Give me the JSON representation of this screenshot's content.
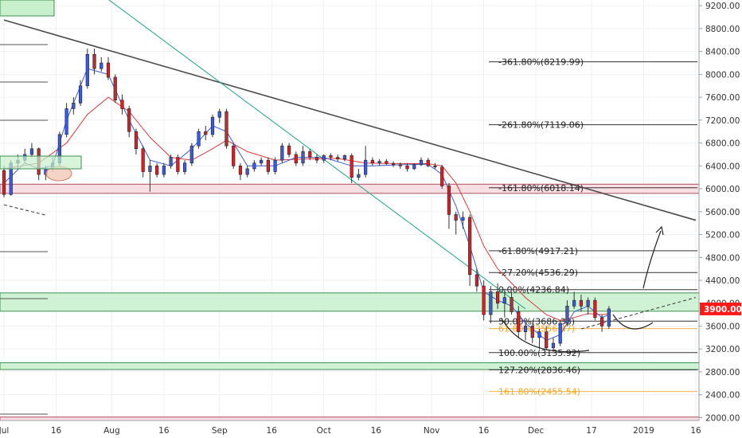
{
  "chart_data": {
    "type": "candlestick",
    "title": "",
    "xlabel": "",
    "ylabel": "",
    "ylim": [
      1950,
      9300
    ],
    "y_ticks": [
      9200,
      8800,
      8400,
      8000,
      7600,
      7200,
      6800,
      6400,
      6000,
      5600,
      5200,
      4800,
      4400,
      4000,
      3600,
      3200,
      2800,
      2400,
      2000
    ],
    "y_tick_labels": [
      "9200.00",
      "8800.00",
      "8400.00",
      "8000.00",
      "7600.00",
      "7200.00",
      "6800.00",
      "6400.00",
      "6000.00",
      "5600.00",
      "5200.00",
      "4800.00",
      "4400.00",
      "4000.00",
      "3600.00",
      "3200.00",
      "2800.00",
      "2400.00",
      "2000.00"
    ],
    "x_ticks": [
      {
        "label": "Jul",
        "day": 0
      },
      {
        "label": "16",
        "day": 15
      },
      {
        "label": "Aug",
        "day": 31
      },
      {
        "label": "16",
        "day": 46
      },
      {
        "label": "Sep",
        "day": 62
      },
      {
        "label": "16",
        "day": 77
      },
      {
        "label": "Oct",
        "day": 92
      },
      {
        "label": "16",
        "day": 107
      },
      {
        "label": "Nov",
        "day": 123
      },
      {
        "label": "16",
        "day": 138
      },
      {
        "label": "Dec",
        "day": 153
      },
      {
        "label": "17",
        "day": 169
      },
      {
        "label": "2019",
        "day": 184
      },
      {
        "label": "16",
        "day": 199
      }
    ],
    "x_range_days": [
      0,
      199
    ],
    "price_label": {
      "value": 3900,
      "text": "3900.00",
      "color": "#ff1a1a"
    },
    "fib_levels": [
      {
        "label": "-361.80%(8219.99)",
        "value": 8219.99,
        "color": "#222222"
      },
      {
        "label": "-261.80%(7119.06)",
        "value": 7119.06,
        "color": "#222222"
      },
      {
        "label": "-161.80%(6018.14)",
        "value": 6018.14,
        "color": "#222222"
      },
      {
        "label": "-61.80%(4917.21)",
        "value": 4917.21,
        "color": "#222222"
      },
      {
        "label": "-27.20%(4536.29)",
        "value": 4536.29,
        "color": "#222222"
      },
      {
        "label": "0.00%(4236.84)",
        "value": 4236.84,
        "color": "#222222"
      },
      {
        "label": "50.00%(3686.38)",
        "value": 3686.38,
        "color": "#222222"
      },
      {
        "label": "61.80%(3556.47)",
        "value": 3556.47,
        "color": "#f5a623"
      },
      {
        "label": "100.00%(3135.92)",
        "value": 3135.92,
        "color": "#222222"
      },
      {
        "label": "127.20%(2836.46)",
        "value": 2836.46,
        "color": "#222222"
      },
      {
        "label": "161.80%(2455.54)",
        "value": 2455.54,
        "color": "#f5a623"
      }
    ],
    "zones": [
      {
        "low": 5920,
        "high": 6080,
        "color": "pink"
      },
      {
        "low": 3860,
        "high": 4180,
        "color": "green"
      },
      {
        "low": 2840,
        "high": 2960,
        "color": "green"
      },
      {
        "low": 1950,
        "high": 2010,
        "color": "pink"
      }
    ],
    "candles": [
      {
        "day": 0,
        "o": 6320,
        "h": 6400,
        "l": 5850,
        "c": 5900
      },
      {
        "day": 2,
        "o": 5900,
        "h": 6500,
        "l": 5880,
        "c": 6450
      },
      {
        "day": 4,
        "o": 6450,
        "h": 6600,
        "l": 6350,
        "c": 6500
      },
      {
        "day": 6,
        "o": 6500,
        "h": 6700,
        "l": 6450,
        "c": 6600
      },
      {
        "day": 8,
        "o": 6600,
        "h": 6800,
        "l": 6550,
        "c": 6700
      },
      {
        "day": 10,
        "o": 6700,
        "h": 6720,
        "l": 6150,
        "c": 6250
      },
      {
        "day": 12,
        "o": 6250,
        "h": 6400,
        "l": 6150,
        "c": 6350
      },
      {
        "day": 14,
        "o": 6350,
        "h": 6550,
        "l": 6300,
        "c": 6450
      },
      {
        "day": 16,
        "o": 6450,
        "h": 7000,
        "l": 6400,
        "c": 6950
      },
      {
        "day": 18,
        "o": 6950,
        "h": 7500,
        "l": 6900,
        "c": 7400
      },
      {
        "day": 20,
        "o": 7400,
        "h": 7600,
        "l": 7300,
        "c": 7500
      },
      {
        "day": 22,
        "o": 7500,
        "h": 7900,
        "l": 7450,
        "c": 7800
      },
      {
        "day": 24,
        "o": 7800,
        "h": 8450,
        "l": 7750,
        "c": 8350
      },
      {
        "day": 26,
        "o": 8350,
        "h": 8450,
        "l": 8000,
        "c": 8100
      },
      {
        "day": 28,
        "o": 8100,
        "h": 8300,
        "l": 8050,
        "c": 8200
      },
      {
        "day": 30,
        "o": 8200,
        "h": 8300,
        "l": 7900,
        "c": 7950
      },
      {
        "day": 32,
        "o": 7950,
        "h": 8000,
        "l": 7500,
        "c": 7550
      },
      {
        "day": 34,
        "o": 7550,
        "h": 7650,
        "l": 7300,
        "c": 7400
      },
      {
        "day": 36,
        "o": 7400,
        "h": 7450,
        "l": 6900,
        "c": 7000
      },
      {
        "day": 38,
        "o": 7000,
        "h": 7050,
        "l": 6600,
        "c": 6700
      },
      {
        "day": 40,
        "o": 6700,
        "h": 6750,
        "l": 6200,
        "c": 6300
      },
      {
        "day": 42,
        "o": 6300,
        "h": 6500,
        "l": 5950,
        "c": 6400
      },
      {
        "day": 44,
        "o": 6400,
        "h": 6450,
        "l": 6200,
        "c": 6250
      },
      {
        "day": 46,
        "o": 6250,
        "h": 6450,
        "l": 6200,
        "c": 6400
      },
      {
        "day": 48,
        "o": 6400,
        "h": 6600,
        "l": 6350,
        "c": 6550
      },
      {
        "day": 50,
        "o": 6550,
        "h": 6600,
        "l": 6250,
        "c": 6300
      },
      {
        "day": 52,
        "o": 6300,
        "h": 6500,
        "l": 6250,
        "c": 6450
      },
      {
        "day": 54,
        "o": 6450,
        "h": 6800,
        "l": 6400,
        "c": 6750
      },
      {
        "day": 56,
        "o": 6750,
        "h": 7050,
        "l": 6700,
        "c": 7000
      },
      {
        "day": 58,
        "o": 7000,
        "h": 7100,
        "l": 6850,
        "c": 6950
      },
      {
        "day": 60,
        "o": 6950,
        "h": 7300,
        "l": 6900,
        "c": 7250
      },
      {
        "day": 62,
        "o": 7250,
        "h": 7400,
        "l": 7150,
        "c": 7350
      },
      {
        "day": 64,
        "o": 7350,
        "h": 7400,
        "l": 6700,
        "c": 6750
      },
      {
        "day": 66,
        "o": 6750,
        "h": 6800,
        "l": 6350,
        "c": 6400
      },
      {
        "day": 68,
        "o": 6400,
        "h": 6450,
        "l": 6150,
        "c": 6250
      },
      {
        "day": 70,
        "o": 6250,
        "h": 6400,
        "l": 6200,
        "c": 6350
      },
      {
        "day": 72,
        "o": 6350,
        "h": 6500,
        "l": 6300,
        "c": 6450
      },
      {
        "day": 74,
        "o": 6450,
        "h": 6550,
        "l": 6400,
        "c": 6500
      },
      {
        "day": 76,
        "o": 6500,
        "h": 6550,
        "l": 6250,
        "c": 6300
      },
      {
        "day": 78,
        "o": 6300,
        "h": 6550,
        "l": 6250,
        "c": 6500
      },
      {
        "day": 80,
        "o": 6500,
        "h": 6800,
        "l": 6450,
        "c": 6750
      },
      {
        "day": 82,
        "o": 6750,
        "h": 6800,
        "l": 6550,
        "c": 6600
      },
      {
        "day": 84,
        "o": 6600,
        "h": 6650,
        "l": 6400,
        "c": 6450
      },
      {
        "day": 86,
        "o": 6450,
        "h": 6750,
        "l": 6400,
        "c": 6650
      },
      {
        "day": 88,
        "o": 6650,
        "h": 6700,
        "l": 6500,
        "c": 6550
      },
      {
        "day": 90,
        "o": 6550,
        "h": 6600,
        "l": 6450,
        "c": 6500
      },
      {
        "day": 92,
        "o": 6500,
        "h": 6600,
        "l": 6450,
        "c": 6580
      },
      {
        "day": 94,
        "o": 6580,
        "h": 6620,
        "l": 6500,
        "c": 6550
      },
      {
        "day": 96,
        "o": 6550,
        "h": 6600,
        "l": 6480,
        "c": 6520
      },
      {
        "day": 98,
        "o": 6520,
        "h": 6600,
        "l": 6480,
        "c": 6580
      },
      {
        "day": 100,
        "o": 6580,
        "h": 6620,
        "l": 6100,
        "c": 6200
      },
      {
        "day": 102,
        "o": 6200,
        "h": 6350,
        "l": 6150,
        "c": 6250
      },
      {
        "day": 104,
        "o": 6250,
        "h": 6750,
        "l": 6200,
        "c": 6500
      },
      {
        "day": 106,
        "o": 6500,
        "h": 6550,
        "l": 6400,
        "c": 6450
      },
      {
        "day": 108,
        "o": 6450,
        "h": 6520,
        "l": 6400,
        "c": 6480
      },
      {
        "day": 110,
        "o": 6480,
        "h": 6520,
        "l": 6420,
        "c": 6440
      },
      {
        "day": 112,
        "o": 6440,
        "h": 6480,
        "l": 6380,
        "c": 6420
      },
      {
        "day": 114,
        "o": 6420,
        "h": 6460,
        "l": 6350,
        "c": 6400
      },
      {
        "day": 116,
        "o": 6400,
        "h": 6450,
        "l": 6300,
        "c": 6350
      },
      {
        "day": 118,
        "o": 6350,
        "h": 6450,
        "l": 6330,
        "c": 6420
      },
      {
        "day": 120,
        "o": 6420,
        "h": 6550,
        "l": 6400,
        "c": 6500
      },
      {
        "day": 122,
        "o": 6500,
        "h": 6540,
        "l": 6380,
        "c": 6400
      },
      {
        "day": 124,
        "o": 6400,
        "h": 6450,
        "l": 6350,
        "c": 6380
      },
      {
        "day": 126,
        "o": 6380,
        "h": 6420,
        "l": 6000,
        "c": 6050
      },
      {
        "day": 128,
        "o": 6050,
        "h": 6100,
        "l": 5300,
        "c": 5550
      },
      {
        "day": 130,
        "o": 5550,
        "h": 5600,
        "l": 5200,
        "c": 5450
      },
      {
        "day": 132,
        "o": 5450,
        "h": 5600,
        "l": 5300,
        "c": 5500
      },
      {
        "day": 134,
        "o": 5500,
        "h": 5550,
        "l": 4300,
        "c": 4500
      },
      {
        "day": 136,
        "o": 4500,
        "h": 4600,
        "l": 4200,
        "c": 4300
      },
      {
        "day": 138,
        "o": 4300,
        "h": 4400,
        "l": 3700,
        "c": 3800
      },
      {
        "day": 140,
        "o": 3800,
        "h": 4300,
        "l": 3650,
        "c": 4200
      },
      {
        "day": 142,
        "o": 4200,
        "h": 4350,
        "l": 3900,
        "c": 4000
      },
      {
        "day": 144,
        "o": 4000,
        "h": 4250,
        "l": 3750,
        "c": 4100
      },
      {
        "day": 146,
        "o": 4100,
        "h": 4200,
        "l": 3800,
        "c": 3850
      },
      {
        "day": 148,
        "o": 3850,
        "h": 3950,
        "l": 3400,
        "c": 3500
      },
      {
        "day": 150,
        "o": 3500,
        "h": 3700,
        "l": 3350,
        "c": 3600
      },
      {
        "day": 152,
        "o": 3600,
        "h": 3650,
        "l": 3300,
        "c": 3400
      },
      {
        "day": 154,
        "o": 3400,
        "h": 3550,
        "l": 3200,
        "c": 3500
      },
      {
        "day": 156,
        "o": 3500,
        "h": 3600,
        "l": 3180,
        "c": 3220
      },
      {
        "day": 158,
        "o": 3220,
        "h": 3400,
        "l": 3150,
        "c": 3300
      },
      {
        "day": 160,
        "o": 3300,
        "h": 3700,
        "l": 3250,
        "c": 3650
      },
      {
        "day": 162,
        "o": 3650,
        "h": 4050,
        "l": 3600,
        "c": 3950
      },
      {
        "day": 164,
        "o": 3950,
        "h": 4200,
        "l": 3900,
        "c": 4050
      },
      {
        "day": 166,
        "o": 4050,
        "h": 4150,
        "l": 3850,
        "c": 3950
      },
      {
        "day": 168,
        "o": 3950,
        "h": 4100,
        "l": 3800,
        "c": 4050
      },
      {
        "day": 170,
        "o": 4050,
        "h": 4100,
        "l": 3700,
        "c": 3750
      },
      {
        "day": 172,
        "o": 3750,
        "h": 3800,
        "l": 3500,
        "c": 3600
      },
      {
        "day": 174,
        "o": 3600,
        "h": 3950,
        "l": 3550,
        "c": 3900
      }
    ],
    "ema_fast": [
      [
        0,
        6100
      ],
      [
        6,
        6450
      ],
      [
        10,
        6350
      ],
      [
        14,
        6400
      ],
      [
        18,
        7200
      ],
      [
        24,
        8100
      ],
      [
        30,
        8000
      ],
      [
        36,
        7200
      ],
      [
        42,
        6500
      ],
      [
        48,
        6400
      ],
      [
        54,
        6700
      ],
      [
        60,
        7100
      ],
      [
        64,
        7000
      ],
      [
        70,
        6400
      ],
      [
        78,
        6400
      ],
      [
        84,
        6550
      ],
      [
        92,
        6550
      ],
      [
        100,
        6400
      ],
      [
        106,
        6400
      ],
      [
        114,
        6420
      ],
      [
        122,
        6430
      ],
      [
        126,
        6250
      ],
      [
        130,
        5700
      ],
      [
        134,
        5000
      ],
      [
        138,
        4200
      ],
      [
        142,
        4050
      ],
      [
        146,
        3950
      ],
      [
        150,
        3650
      ],
      [
        156,
        3350
      ],
      [
        160,
        3450
      ],
      [
        164,
        3850
      ],
      [
        168,
        3950
      ],
      [
        172,
        3750
      ],
      [
        174,
        3800
      ]
    ],
    "ema_slow": [
      [
        0,
        6350
      ],
      [
        10,
        6450
      ],
      [
        18,
        6800
      ],
      [
        24,
        7300
      ],
      [
        30,
        7600
      ],
      [
        36,
        7350
      ],
      [
        42,
        6900
      ],
      [
        48,
        6550
      ],
      [
        54,
        6500
      ],
      [
        60,
        6700
      ],
      [
        64,
        6850
      ],
      [
        70,
        6650
      ],
      [
        78,
        6500
      ],
      [
        86,
        6520
      ],
      [
        96,
        6530
      ],
      [
        104,
        6450
      ],
      [
        114,
        6440
      ],
      [
        122,
        6440
      ],
      [
        126,
        6400
      ],
      [
        130,
        6100
      ],
      [
        134,
        5600
      ],
      [
        138,
        5000
      ],
      [
        142,
        4600
      ],
      [
        146,
        4350
      ],
      [
        150,
        4100
      ],
      [
        156,
        3800
      ],
      [
        160,
        3700
      ],
      [
        164,
        3750
      ],
      [
        168,
        3820
      ],
      [
        172,
        3800
      ],
      [
        174,
        3820
      ]
    ],
    "trendline_dark": {
      "from": [
        0,
        8950
      ],
      "to": [
        199,
        5450
      ]
    },
    "trendline_teal": {
      "from": [
        28,
        9400
      ],
      "to": [
        150,
        3900
      ]
    },
    "dashed_line_left": {
      "from": [
        0,
        5720
      ],
      "to": [
        12,
        5540
      ]
    },
    "dashed_line_right": {
      "from": [
        166,
        3550
      ],
      "to": [
        199,
        4100
      ]
    }
  }
}
